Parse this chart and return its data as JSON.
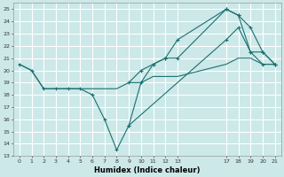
{
  "xlabel": "Humidex (Indice chaleur)",
  "bg_color": "#cce8e8",
  "grid_color": "#ffffff",
  "line_color": "#1a7070",
  "xlim": [
    -0.5,
    21.5
  ],
  "ylim": [
    13,
    25.5
  ],
  "yticks": [
    13,
    14,
    15,
    16,
    17,
    18,
    19,
    20,
    21,
    22,
    23,
    24,
    25
  ],
  "xticks": [
    0,
    1,
    2,
    3,
    4,
    5,
    6,
    7,
    8,
    9,
    10,
    11,
    12,
    13,
    17,
    18,
    19,
    20,
    21
  ],
  "lines": [
    {
      "x": [
        0,
        1,
        2,
        3,
        4,
        5,
        6,
        7,
        8,
        9,
        17,
        18,
        19,
        20,
        21
      ],
      "y": [
        20.5,
        20.0,
        18.5,
        18.5,
        18.5,
        18.5,
        18.0,
        16.0,
        13.5,
        15.5,
        22.5,
        23.5,
        21.5,
        21.5,
        20.5
      ],
      "marker": true
    },
    {
      "x": [
        9,
        10,
        11,
        12,
        13,
        17,
        18,
        19,
        20,
        21
      ],
      "y": [
        15.5,
        19.0,
        20.5,
        21.0,
        22.5,
        25.0,
        24.5,
        23.5,
        21.5,
        20.5
      ],
      "marker": true
    },
    {
      "x": [
        0,
        1,
        2,
        3,
        4,
        5,
        6,
        7,
        8,
        9,
        10,
        11,
        12,
        13,
        17,
        18,
        19,
        20,
        21
      ],
      "y": [
        20.5,
        20.0,
        18.5,
        18.5,
        18.5,
        18.5,
        18.5,
        18.5,
        18.5,
        19.0,
        19.0,
        19.5,
        19.5,
        19.5,
        20.5,
        21.0,
        21.0,
        20.5,
        20.5
      ],
      "marker": false
    },
    {
      "x": [
        9,
        10,
        11,
        12,
        13,
        17,
        18,
        19,
        20,
        21
      ],
      "y": [
        19.0,
        20.0,
        20.5,
        21.0,
        21.0,
        25.0,
        24.5,
        21.5,
        20.5,
        20.5
      ],
      "marker": true
    }
  ]
}
